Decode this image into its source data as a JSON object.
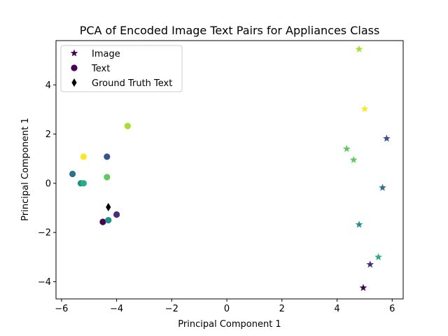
{
  "chart_data": {
    "type": "scatter",
    "title": "PCA of Encoded Image Text Pairs for Appliances Class",
    "xlabel": "Principal Component 1",
    "ylabel": "Principal Component 1",
    "xlim": [
      -6.2,
      6.4
    ],
    "ylim": [
      -4.7,
      5.8
    ],
    "xticks": [
      -6,
      -4,
      -2,
      0,
      2,
      4,
      6
    ],
    "yticks": [
      -4,
      -2,
      0,
      2,
      4
    ],
    "tick_labels_x": [
      "−6",
      "−4",
      "−2",
      "0",
      "2",
      "4",
      "6"
    ],
    "tick_labels_y": [
      "−4",
      "−2",
      "0",
      "2",
      "4"
    ],
    "grid": false,
    "legend_position": "top-left",
    "legend": [
      {
        "label": "Image",
        "marker": "star",
        "color": "#440154"
      },
      {
        "label": "Text",
        "marker": "circle",
        "color": "#440154"
      },
      {
        "label": "Ground Truth Text",
        "marker": "diamond",
        "color": "#000000"
      }
    ],
    "series": [
      {
        "name": "Image",
        "marker": "star",
        "points": [
          {
            "x": 4.95,
            "y": -4.25,
            "color": "#440154"
          },
          {
            "x": 5.2,
            "y": -3.3,
            "color": "#472c7a"
          },
          {
            "x": 5.8,
            "y": 1.82,
            "color": "#3b528b"
          },
          {
            "x": 5.65,
            "y": -0.18,
            "color": "#2c728e"
          },
          {
            "x": 4.8,
            "y": -1.68,
            "color": "#21908d"
          },
          {
            "x": 5.5,
            "y": -3.0,
            "color": "#27ad81"
          },
          {
            "x": 4.35,
            "y": 1.4,
            "color": "#5cc863"
          },
          {
            "x": 4.6,
            "y": 0.95,
            "color": "#5ec962"
          },
          {
            "x": 4.8,
            "y": 5.45,
            "color": "#aadc32"
          },
          {
            "x": 5.0,
            "y": 3.02,
            "color": "#fde725"
          }
        ]
      },
      {
        "name": "Text",
        "marker": "circle",
        "points": [
          {
            "x": -4.5,
            "y": -1.57,
            "color": "#440154"
          },
          {
            "x": -4.0,
            "y": -1.27,
            "color": "#472c7a"
          },
          {
            "x": -4.35,
            "y": 1.08,
            "color": "#3b528b"
          },
          {
            "x": -5.6,
            "y": 0.38,
            "color": "#2c728e"
          },
          {
            "x": -5.3,
            "y": 0.0,
            "color": "#21908d"
          },
          {
            "x": -4.3,
            "y": -1.5,
            "color": "#21908d"
          },
          {
            "x": -5.2,
            "y": 0.0,
            "color": "#27ad81"
          },
          {
            "x": -4.35,
            "y": 0.25,
            "color": "#5ec962"
          },
          {
            "x": -3.6,
            "y": 2.33,
            "color": "#aadc32"
          },
          {
            "x": -5.2,
            "y": 1.08,
            "color": "#fde725"
          }
        ]
      },
      {
        "name": "Ground Truth Text",
        "marker": "diamond",
        "points": [
          {
            "x": -4.3,
            "y": -0.97,
            "color": "#000000"
          }
        ]
      }
    ]
  }
}
